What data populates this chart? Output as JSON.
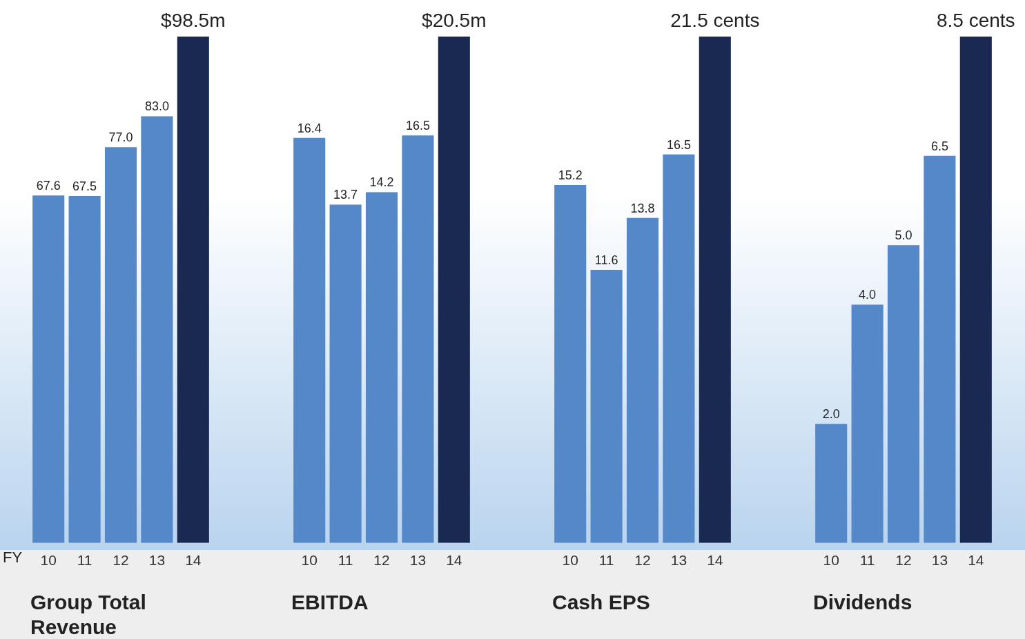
{
  "chart_data": [
    {
      "type": "bar",
      "title": "Group Total Revenue",
      "categories": [
        "10",
        "11",
        "12",
        "13",
        "14"
      ],
      "values": [
        67.6,
        67.5,
        77.0,
        83.0,
        98.5
      ],
      "colors": [
        "#5588c8",
        "#5588c8",
        "#5588c8",
        "#5588c8",
        "#1a2952"
      ],
      "value_labels": [
        "67.6",
        "67.5",
        "77.0",
        "83.0",
        "$98.5m"
      ],
      "annotations": [
        "FY"
      ]
    },
    {
      "type": "bar",
      "title": "EBITDA",
      "categories": [
        "10",
        "11",
        "12",
        "13",
        "14"
      ],
      "values": [
        16.4,
        13.7,
        14.2,
        16.5,
        20.5
      ],
      "colors": [
        "#5588c8",
        "#5588c8",
        "#5588c8",
        "#5588c8",
        "#1a2952"
      ],
      "value_labels": [
        "16.4",
        "13.7",
        "14.2",
        "16.5",
        "$20.5m"
      ]
    },
    {
      "type": "bar",
      "title": "Cash EPS",
      "categories": [
        "10",
        "11",
        "12",
        "13",
        "14"
      ],
      "values": [
        15.2,
        11.6,
        13.8,
        16.5,
        21.5
      ],
      "colors": [
        "#5588c8",
        "#5588c8",
        "#5588c8",
        "#5588c8",
        "#1a2952"
      ],
      "value_labels": [
        "15.2",
        "11.6",
        "13.8",
        "16.5",
        "21.5 cents"
      ]
    },
    {
      "type": "bar",
      "title": "Dividends",
      "categories": [
        "10",
        "11",
        "12",
        "13",
        "14"
      ],
      "values": [
        2.0,
        4.0,
        5.0,
        6.5,
        8.5
      ],
      "colors": [
        "#5588c8",
        "#5588c8",
        "#5588c8",
        "#5588c8",
        "#1a2952"
      ],
      "value_labels": [
        "2.0",
        "4.0",
        "5.0",
        "6.5",
        "8.5 cents"
      ]
    }
  ]
}
